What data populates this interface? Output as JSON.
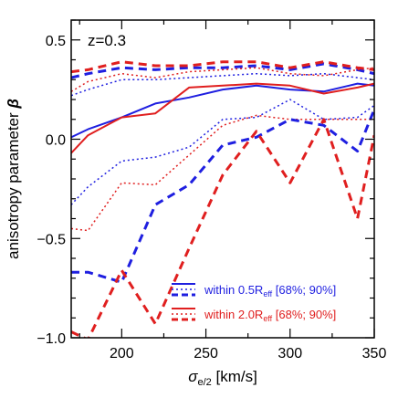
{
  "chart_data": {
    "type": "line",
    "annotation": "z=0.3",
    "xlabel": {
      "main": "σ",
      "sub": "e/2",
      "rest": " [km/s]"
    },
    "ylabel": {
      "main": "anisotropy parameter ",
      "symbol": "β"
    },
    "xlim": [
      170,
      350
    ],
    "ylim": [
      -1.0,
      0.6
    ],
    "x_ticks": [
      200,
      250,
      300,
      350
    ],
    "y_ticks": [
      {
        "value": 0.5,
        "label": "0.5"
      },
      {
        "value": 0.0,
        "label": "0.0"
      },
      {
        "value": -0.5,
        "label": "−0.5"
      },
      {
        "value": -1.0,
        "label": "−1.0"
      }
    ],
    "colors": {
      "blue": "#1f1fe0",
      "red": "#e01f1f"
    },
    "legend": [
      {
        "color": "blue",
        "text_main": "within 0.5R",
        "text_sub": "eff",
        "text_tail": " [68%; 90%]"
      },
      {
        "color": "red",
        "text_main": "within 2.0R",
        "text_sub": "eff",
        "text_tail": " [68%; 90%]"
      }
    ],
    "x": [
      170,
      180,
      200,
      220,
      240,
      260,
      280,
      300,
      320,
      340,
      350
    ],
    "series": [
      {
        "group": "blue",
        "role": "median",
        "style": "solid",
        "values": [
          0.01,
          0.05,
          0.11,
          0.18,
          0.21,
          0.25,
          0.27,
          0.25,
          0.24,
          0.28,
          0.27
        ]
      },
      {
        "group": "red",
        "role": "median",
        "style": "solid",
        "values": [
          -0.07,
          0.02,
          0.11,
          0.13,
          0.26,
          0.27,
          0.28,
          0.27,
          0.23,
          0.26,
          0.28
        ]
      },
      {
        "group": "blue",
        "role": "68% upper",
        "style": "dotted",
        "values": [
          0.22,
          0.25,
          0.3,
          0.3,
          0.31,
          0.32,
          0.33,
          0.32,
          0.33,
          0.31,
          0.3
        ]
      },
      {
        "group": "blue",
        "role": "90% upper",
        "style": "dashed",
        "values": [
          0.31,
          0.33,
          0.36,
          0.35,
          0.36,
          0.36,
          0.37,
          0.35,
          0.38,
          0.35,
          0.33
        ]
      },
      {
        "group": "red",
        "role": "68% upper",
        "style": "dotted",
        "values": [
          0.24,
          0.29,
          0.33,
          0.31,
          0.34,
          0.35,
          0.36,
          0.33,
          0.32,
          0.35,
          0.36
        ]
      },
      {
        "group": "red",
        "role": "90% upper",
        "style": "dashed",
        "values": [
          0.34,
          0.35,
          0.39,
          0.37,
          0.37,
          0.39,
          0.39,
          0.36,
          0.39,
          0.36,
          0.35
        ]
      },
      {
        "group": "blue",
        "role": "68% lower",
        "style": "dotted",
        "values": [
          -0.33,
          -0.24,
          -0.11,
          -0.09,
          -0.04,
          0.1,
          0.11,
          0.2,
          0.1,
          0.11,
          0.17
        ]
      },
      {
        "group": "red",
        "role": "68% lower",
        "style": "dotted",
        "values": [
          -0.45,
          -0.46,
          -0.22,
          -0.23,
          -0.08,
          0.07,
          0.12,
          0.1,
          0.1,
          0.1,
          0.1
        ]
      },
      {
        "group": "blue",
        "role": "90% lower",
        "style": "dashed",
        "values": [
          -0.67,
          -0.67,
          -0.72,
          -0.33,
          -0.23,
          -0.03,
          0.01,
          0.1,
          0.07,
          -0.06,
          0.15
        ]
      },
      {
        "group": "red",
        "role": "90% lower",
        "style": "dashed",
        "values": [
          -0.97,
          -1.01,
          -0.66,
          -0.93,
          -0.55,
          -0.18,
          0.04,
          -0.22,
          0.1,
          -0.4,
          0.02
        ]
      }
    ]
  }
}
